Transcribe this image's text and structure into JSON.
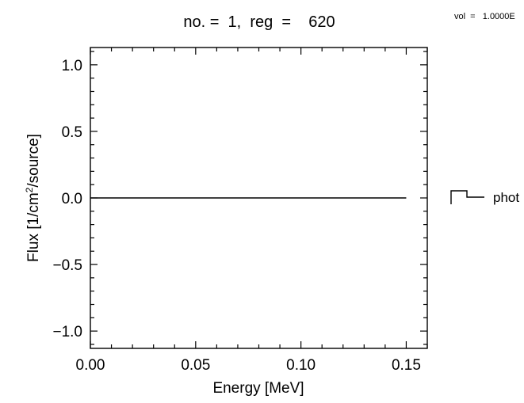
{
  "chart_data": {
    "type": "line",
    "title": "no. =  1,  reg  =    620",
    "annotation": "vol  =   1.0000E",
    "xlabel": "Energy [MeV]",
    "ylabel_parts": [
      "Flux [1/cm",
      "2",
      "/source]"
    ],
    "xlim": [
      0.0,
      0.16
    ],
    "ylim": [
      -1.13,
      1.13
    ],
    "xticks": [
      0.0,
      0.05,
      0.1,
      0.15
    ],
    "xtick_labels": [
      "0.00",
      "0.05",
      "0.10",
      "0.15"
    ],
    "yticks": [
      -1.0,
      -0.5,
      0.0,
      0.5,
      1.0
    ],
    "ytick_labels": [
      "−1.0",
      "−0.5",
      "0.0",
      "0.5",
      "1.0"
    ],
    "grid": false,
    "legend_position": "right",
    "series": [
      {
        "name": "phot",
        "color": "#000000",
        "x": [
          0.0,
          0.15
        ],
        "values": [
          0.0,
          0.0
        ]
      }
    ]
  }
}
